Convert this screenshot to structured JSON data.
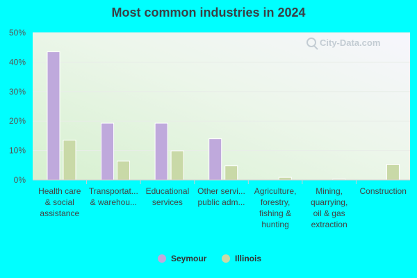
{
  "watermark": "City-Data.com",
  "chart_data": {
    "type": "bar",
    "title": "Most common industries in 2024",
    "categories": [
      [
        "Health care",
        "& social",
        "assistance"
      ],
      [
        "Transportat...",
        "& warehou..."
      ],
      [
        "Educational",
        "services"
      ],
      [
        "Other servi...",
        "public adm..."
      ],
      [
        "Agriculture,",
        "forestry,",
        "fishing &",
        "hunting"
      ],
      [
        "Mining,",
        "quarrying,",
        "oil & gas",
        "extraction"
      ],
      [
        "Construction"
      ]
    ],
    "series": [
      {
        "name": "Seymour",
        "values": [
          43.5,
          19.3,
          19.3,
          14.0,
          0.0,
          0.0,
          0.0
        ]
      },
      {
        "name": "Illinois",
        "values": [
          13.5,
          6.4,
          9.9,
          4.8,
          0.9,
          0.3,
          5.3
        ]
      }
    ],
    "yticks": [
      "0%",
      "10%",
      "20%",
      "30%",
      "40%",
      "50%"
    ],
    "ylim": [
      0,
      50
    ],
    "grid": true,
    "legend_position": "bottom-center",
    "colors": {
      "Seymour": "#bfa9dc",
      "Illinois": "#c9d9a7",
      "background": "#00FFFF"
    }
  }
}
